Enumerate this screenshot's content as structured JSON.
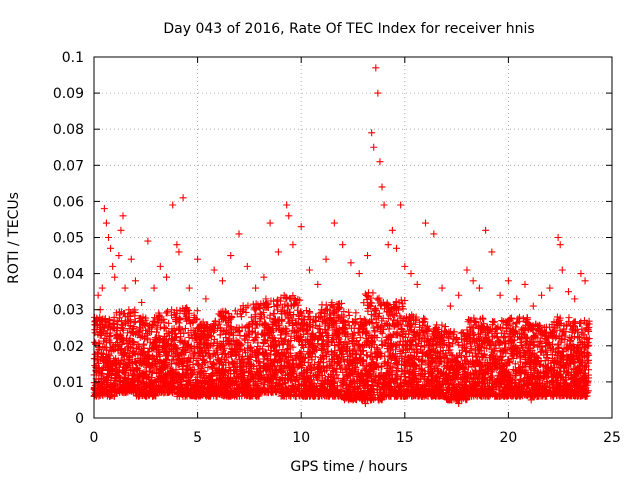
{
  "chart_data": {
    "type": "scatter",
    "title": "Day 043 of 2016, Rate Of TEC Index for receiver hnis",
    "xlabel": "GPS time / hours",
    "ylabel": "ROTI / TECUs",
    "xlim": [
      0,
      25
    ],
    "ylim": [
      0,
      0.1
    ],
    "xticks": [
      "0",
      "5",
      "10",
      "15",
      "20",
      "25"
    ],
    "yticks": [
      "0",
      "0.01",
      "0.02",
      "0.03",
      "0.04",
      "0.05",
      "0.06",
      "0.07",
      "0.08",
      "0.09",
      "0.1"
    ],
    "grid": true,
    "marker": "+",
    "color": "#ff0000",
    "series": [
      {
        "points": [
          [
            0.1,
            0.013
          ],
          [
            0.2,
            0.034
          ],
          [
            0.3,
            0.03
          ],
          [
            0.4,
            0.036
          ],
          [
            0.5,
            0.058
          ],
          [
            0.6,
            0.054
          ],
          [
            0.7,
            0.05
          ],
          [
            0.8,
            0.047
          ],
          [
            0.9,
            0.042
          ],
          [
            1.0,
            0.039
          ],
          [
            1.2,
            0.045
          ],
          [
            1.3,
            0.052
          ],
          [
            1.4,
            0.056
          ],
          [
            1.5,
            0.036
          ],
          [
            1.8,
            0.044
          ],
          [
            2.0,
            0.038
          ],
          [
            2.3,
            0.032
          ],
          [
            2.6,
            0.049
          ],
          [
            2.9,
            0.036
          ],
          [
            3.2,
            0.042
          ],
          [
            3.5,
            0.039
          ],
          [
            3.8,
            0.059
          ],
          [
            4.0,
            0.048
          ],
          [
            4.1,
            0.046
          ],
          [
            4.3,
            0.061
          ],
          [
            4.6,
            0.036
          ],
          [
            5.0,
            0.044
          ],
          [
            5.4,
            0.033
          ],
          [
            5.8,
            0.041
          ],
          [
            6.2,
            0.038
          ],
          [
            6.6,
            0.045
          ],
          [
            7.0,
            0.051
          ],
          [
            7.4,
            0.042
          ],
          [
            7.8,
            0.036
          ],
          [
            8.2,
            0.039
          ],
          [
            8.5,
            0.054
          ],
          [
            8.9,
            0.046
          ],
          [
            9.3,
            0.059
          ],
          [
            9.4,
            0.056
          ],
          [
            9.6,
            0.048
          ],
          [
            10.0,
            0.053
          ],
          [
            10.4,
            0.041
          ],
          [
            10.8,
            0.037
          ],
          [
            11.2,
            0.044
          ],
          [
            11.6,
            0.054
          ],
          [
            12.0,
            0.048
          ],
          [
            12.4,
            0.043
          ],
          [
            12.8,
            0.04
          ],
          [
            13.2,
            0.045
          ],
          [
            13.4,
            0.079
          ],
          [
            13.5,
            0.075
          ],
          [
            13.6,
            0.097
          ],
          [
            13.7,
            0.09
          ],
          [
            13.8,
            0.071
          ],
          [
            13.9,
            0.064
          ],
          [
            14.0,
            0.059
          ],
          [
            14.2,
            0.048
          ],
          [
            14.4,
            0.052
          ],
          [
            14.6,
            0.047
          ],
          [
            14.8,
            0.059
          ],
          [
            15.0,
            0.042
          ],
          [
            15.3,
            0.04
          ],
          [
            15.6,
            0.037
          ],
          [
            16.0,
            0.054
          ],
          [
            16.4,
            0.051
          ],
          [
            16.8,
            0.036
          ],
          [
            17.2,
            0.031
          ],
          [
            17.6,
            0.034
          ],
          [
            18.0,
            0.041
          ],
          [
            18.3,
            0.038
          ],
          [
            18.6,
            0.036
          ],
          [
            18.9,
            0.052
          ],
          [
            19.2,
            0.046
          ],
          [
            19.6,
            0.034
          ],
          [
            20.0,
            0.038
          ],
          [
            20.4,
            0.033
          ],
          [
            20.8,
            0.037
          ],
          [
            21.2,
            0.031
          ],
          [
            21.6,
            0.034
          ],
          [
            22.0,
            0.036
          ],
          [
            22.4,
            0.05
          ],
          [
            22.5,
            0.048
          ],
          [
            22.6,
            0.041
          ],
          [
            22.9,
            0.035
          ],
          [
            23.2,
            0.033
          ],
          [
            23.5,
            0.04
          ],
          [
            23.7,
            0.038
          ],
          [
            23.9,
            0.022
          ],
          [
            0.3,
            0.008
          ],
          [
            2.1,
            0.009
          ],
          [
            4.4,
            0.006
          ],
          [
            5.7,
            0.007
          ],
          [
            7.9,
            0.008
          ],
          [
            10.6,
            0.006
          ],
          [
            12.5,
            0.005
          ],
          [
            13.1,
            0.004
          ],
          [
            14.5,
            0.006
          ],
          [
            16.2,
            0.007
          ],
          [
            17.6,
            0.004
          ],
          [
            19.4,
            0.006
          ],
          [
            21.1,
            0.005
          ],
          [
            22.8,
            0.007
          ],
          [
            23.6,
            0.009
          ]
        ],
        "density_bands": [
          {
            "x_start": 0.0,
            "x_end": 1.0,
            "y_low": 0.006,
            "y_high": 0.028
          },
          {
            "x_start": 1.0,
            "x_end": 2.0,
            "y_low": 0.007,
            "y_high": 0.03
          },
          {
            "x_start": 2.0,
            "x_end": 3.0,
            "y_low": 0.006,
            "y_high": 0.028
          },
          {
            "x_start": 3.0,
            "x_end": 4.0,
            "y_low": 0.007,
            "y_high": 0.03
          },
          {
            "x_start": 4.0,
            "x_end": 5.0,
            "y_low": 0.006,
            "y_high": 0.031
          },
          {
            "x_start": 5.0,
            "x_end": 6.0,
            "y_low": 0.006,
            "y_high": 0.027
          },
          {
            "x_start": 6.0,
            "x_end": 7.0,
            "y_low": 0.006,
            "y_high": 0.03
          },
          {
            "x_start": 7.0,
            "x_end": 8.0,
            "y_low": 0.006,
            "y_high": 0.032
          },
          {
            "x_start": 8.0,
            "x_end": 9.0,
            "y_low": 0.007,
            "y_high": 0.033
          },
          {
            "x_start": 9.0,
            "x_end": 10.0,
            "y_low": 0.006,
            "y_high": 0.034
          },
          {
            "x_start": 10.0,
            "x_end": 11.0,
            "y_low": 0.006,
            "y_high": 0.03
          },
          {
            "x_start": 11.0,
            "x_end": 12.0,
            "y_low": 0.006,
            "y_high": 0.032
          },
          {
            "x_start": 12.0,
            "x_end": 13.0,
            "y_low": 0.005,
            "y_high": 0.03
          },
          {
            "x_start": 13.0,
            "x_end": 14.0,
            "y_low": 0.005,
            "y_high": 0.035
          },
          {
            "x_start": 14.0,
            "x_end": 15.0,
            "y_low": 0.006,
            "y_high": 0.033
          },
          {
            "x_start": 15.0,
            "x_end": 16.0,
            "y_low": 0.006,
            "y_high": 0.029
          },
          {
            "x_start": 16.0,
            "x_end": 17.0,
            "y_low": 0.006,
            "y_high": 0.026
          },
          {
            "x_start": 17.0,
            "x_end": 18.0,
            "y_low": 0.005,
            "y_high": 0.024
          },
          {
            "x_start": 18.0,
            "x_end": 19.0,
            "y_low": 0.006,
            "y_high": 0.028
          },
          {
            "x_start": 19.0,
            "x_end": 20.0,
            "y_low": 0.006,
            "y_high": 0.027
          },
          {
            "x_start": 20.0,
            "x_end": 21.0,
            "y_low": 0.006,
            "y_high": 0.028
          },
          {
            "x_start": 21.0,
            "x_end": 22.0,
            "y_low": 0.006,
            "y_high": 0.026
          },
          {
            "x_start": 22.0,
            "x_end": 23.0,
            "y_low": 0.006,
            "y_high": 0.028
          },
          {
            "x_start": 23.0,
            "x_end": 23.9,
            "y_low": 0.006,
            "y_high": 0.027
          }
        ]
      }
    ]
  }
}
